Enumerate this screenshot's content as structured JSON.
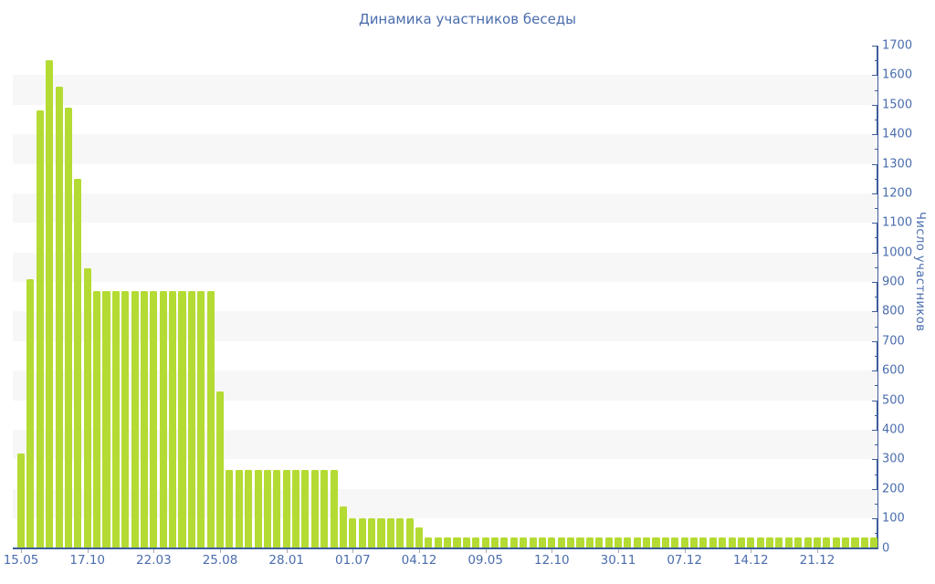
{
  "title": "Динамика участников беседы",
  "colors": {
    "bar": "#b4db33",
    "axis_line": "#3e5c9a",
    "label_text": "#4a6dad",
    "band": "#f7f7f8",
    "x_tick": "#a9a9b0",
    "background": "#ffffff"
  },
  "y_axis": {
    "title": "Число участников",
    "labels": [
      "0",
      "100",
      "200",
      "300",
      "400",
      "500",
      "600",
      "700",
      "800",
      "900",
      "1000",
      "1100",
      "1200",
      "1300",
      "1400",
      "1500",
      "1600",
      "1700"
    ]
  },
  "chart_data": {
    "type": "bar",
    "title": "Динамика участников беседы",
    "xlabel": "",
    "ylabel": "Число участников",
    "ylim": [
      0,
      1700
    ],
    "y_tick_step": 100,
    "y_minor_tick_step": 50,
    "legend_position": "none",
    "grid": "alternating horizontal gray bands (100-200, 300-400, ... 1500-1600)",
    "bar_color": "#b4db33",
    "values": [
      320,
      910,
      1480,
      1650,
      1560,
      1490,
      1250,
      945,
      870,
      870,
      870,
      870,
      870,
      870,
      870,
      870,
      870,
      870,
      870,
      870,
      870,
      530,
      265,
      265,
      265,
      265,
      265,
      265,
      265,
      265,
      265,
      265,
      265,
      265,
      140,
      100,
      100,
      100,
      100,
      100,
      100,
      100,
      70,
      35,
      35,
      35,
      35,
      35,
      35,
      35,
      35,
      35,
      35,
      35,
      35,
      35,
      35,
      35,
      35,
      35,
      35,
      35,
      35,
      35,
      35,
      35,
      35,
      35,
      35,
      35,
      35,
      35,
      35,
      35,
      35,
      35,
      35,
      35,
      35,
      35,
      35,
      35,
      35,
      35,
      35,
      35,
      35,
      35,
      35,
      35,
      35
    ],
    "x_tick_bar_indices": [
      0,
      7,
      14,
      21,
      28,
      35,
      42,
      49,
      56,
      63,
      70,
      77,
      84
    ],
    "x_tick_labels": [
      "15.05",
      "17.10",
      "22.03",
      "25.08",
      "28.01",
      "01.07",
      "04.12",
      "09.05",
      "12.10",
      "30.11",
      "07.12",
      "14.12",
      "21.12"
    ]
  }
}
